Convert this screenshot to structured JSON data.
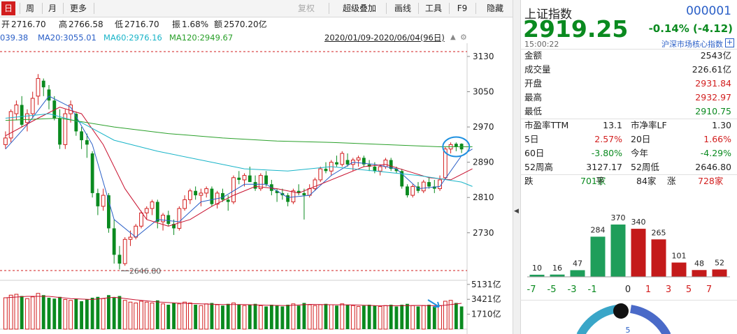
{
  "toolbar": {
    "items": [
      {
        "label": "日",
        "active": true
      },
      {
        "label": "周"
      },
      {
        "label": "月"
      },
      {
        "label": "更多"
      },
      {
        "label": "复权",
        "disabled": true
      },
      {
        "label": "超级叠加"
      },
      {
        "label": "画线"
      },
      {
        "label": "工具"
      },
      {
        "label": "F9"
      },
      {
        "label": "隐藏"
      }
    ]
  },
  "info": {
    "open_label": "开",
    "open": "2716.70",
    "high_label": "高",
    "high": "2766.58",
    "low_label": "低",
    "low": "2716.70",
    "amp_label": "振",
    "amp": "1.68%",
    "amount_label": "额",
    "amount": "2570.20亿"
  },
  "ma": {
    "ma5": "039.38",
    "ma20": "MA20:3055.01",
    "ma60": "MA60:2976.16",
    "ma120": "MA120:2949.67",
    "range": "2020/01/09-2020/06/04(96日)"
  },
  "colors": {
    "up": "#d21e1e",
    "down": "#0a8a1f",
    "ma5": "#2a5fc7",
    "ma20": "#c8102e",
    "ma60": "#18b4c8",
    "ma120": "#2aa02a",
    "accent": "#2a5fc7"
  },
  "chart_data": {
    "type": "candlestick",
    "y_ticks": [
      "3130",
      "3050",
      "2970",
      "2890",
      "2810",
      "2730"
    ],
    "y_tick_values": [
      3130,
      3050,
      2970,
      2890,
      2810,
      2730
    ],
    "ylim": [
      2630,
      3160
    ],
    "min_label": "2646.80",
    "min_value": 2646.8,
    "volume_ticks": [
      "5131亿",
      "3421亿",
      "1710亿"
    ],
    "volume_tick_values": [
      5131,
      3421,
      1710
    ],
    "volume_max": 5600,
    "candles": [
      [
        2930,
        2960,
        2920,
        2945
      ],
      [
        2945,
        3010,
        2935,
        3005
      ],
      [
        3000,
        3030,
        2985,
        3020
      ],
      [
        3020,
        3040,
        2970,
        2975
      ],
      [
        2980,
        3010,
        2960,
        3000
      ],
      [
        3000,
        3050,
        2990,
        3035
      ],
      [
        3040,
        3090,
        3020,
        3080
      ],
      [
        3075,
        3080,
        3040,
        3060
      ],
      [
        3055,
        3065,
        3010,
        3030
      ],
      [
        3030,
        3040,
        2985,
        2990
      ],
      [
        2990,
        3010,
        2920,
        2930
      ],
      [
        2930,
        3010,
        2920,
        3000
      ],
      [
        3000,
        3030,
        2980,
        3020
      ],
      [
        3000,
        3005,
        2950,
        2960
      ],
      [
        2960,
        2970,
        2920,
        2940
      ],
      [
        2940,
        2955,
        2900,
        2930
      ],
      [
        2910,
        2915,
        2810,
        2820
      ],
      [
        2820,
        2830,
        2770,
        2790
      ],
      [
        2790,
        2830,
        2780,
        2815
      ],
      [
        2815,
        2820,
        2730,
        2740
      ],
      [
        2740,
        2760,
        2660,
        2680
      ],
      [
        2680,
        2700,
        2646.8,
        2660
      ],
      [
        2660,
        2720,
        2655,
        2715
      ],
      [
        2715,
        2735,
        2700,
        2720
      ],
      [
        2720,
        2750,
        2715,
        2745
      ],
      [
        2745,
        2780,
        2740,
        2775
      ],
      [
        2775,
        2790,
        2760,
        2785
      ],
      [
        2785,
        2805,
        2770,
        2800
      ],
      [
        2800,
        2805,
        2740,
        2755
      ],
      [
        2755,
        2775,
        2735,
        2770
      ],
      [
        2770,
        2780,
        2745,
        2750
      ],
      [
        2750,
        2760,
        2725,
        2740
      ],
      [
        2740,
        2790,
        2735,
        2785
      ],
      [
        2785,
        2815,
        2780,
        2805
      ],
      [
        2805,
        2830,
        2795,
        2825
      ],
      [
        2825,
        2835,
        2805,
        2815
      ],
      [
        2815,
        2830,
        2790,
        2820
      ],
      [
        2820,
        2835,
        2810,
        2830
      ],
      [
        2830,
        2835,
        2790,
        2795
      ],
      [
        2795,
        2825,
        2785,
        2820
      ],
      [
        2820,
        2830,
        2800,
        2805
      ],
      [
        2805,
        2815,
        2780,
        2800
      ],
      [
        2800,
        2860,
        2795,
        2855
      ],
      [
        2855,
        2870,
        2840,
        2850
      ],
      [
        2850,
        2865,
        2835,
        2860
      ],
      [
        2860,
        2880,
        2850,
        2845
      ],
      [
        2845,
        2860,
        2825,
        2830
      ],
      [
        2830,
        2865,
        2825,
        2860
      ],
      [
        2860,
        2870,
        2835,
        2840
      ],
      [
        2840,
        2850,
        2815,
        2825
      ],
      [
        2825,
        2830,
        2800,
        2820
      ],
      [
        2820,
        2830,
        2805,
        2815
      ],
      [
        2815,
        2820,
        2790,
        2800
      ],
      [
        2800,
        2830,
        2795,
        2825
      ],
      [
        2825,
        2840,
        2815,
        2820
      ],
      [
        2820,
        2830,
        2760,
        2815
      ],
      [
        2815,
        2840,
        2810,
        2830
      ],
      [
        2830,
        2855,
        2825,
        2850
      ],
      [
        2850,
        2880,
        2845,
        2875
      ],
      [
        2875,
        2890,
        2865,
        2870
      ],
      [
        2870,
        2895,
        2860,
        2890
      ],
      [
        2890,
        2905,
        2880,
        2885
      ],
      [
        2885,
        2915,
        2880,
        2910
      ],
      [
        2895,
        2910,
        2880,
        2885
      ],
      [
        2885,
        2900,
        2870,
        2895
      ],
      [
        2895,
        2905,
        2880,
        2900
      ],
      [
        2900,
        2905,
        2880,
        2885
      ],
      [
        2885,
        2895,
        2870,
        2880
      ],
      [
        2880,
        2890,
        2865,
        2870
      ],
      [
        2870,
        2885,
        2860,
        2880
      ],
      [
        2880,
        2900,
        2875,
        2895
      ],
      [
        2895,
        2900,
        2870,
        2875
      ],
      [
        2875,
        2880,
        2865,
        2870
      ],
      [
        2870,
        2875,
        2830,
        2835
      ],
      [
        2835,
        2840,
        2810,
        2815
      ],
      [
        2815,
        2840,
        2810,
        2835
      ],
      [
        2835,
        2845,
        2820,
        2825
      ],
      [
        2825,
        2850,
        2820,
        2845
      ],
      [
        2845,
        2855,
        2830,
        2835
      ],
      [
        2835,
        2850,
        2820,
        2830
      ],
      [
        2830,
        2860,
        2825,
        2850
      ],
      [
        2855,
        2925,
        2850,
        2920
      ],
      [
        2920,
        2935,
        2910,
        2930
      ],
      [
        2931.84,
        2935,
        2915,
        2925
      ],
      [
        2931.84,
        2932.97,
        2910.75,
        2919.25
      ]
    ],
    "volumes": [
      3600,
      3900,
      4000,
      3800,
      3500,
      3700,
      4100,
      3900,
      3600,
      3500,
      3700,
      3400,
      3300,
      3500,
      3200,
      3400,
      3600,
      3700,
      3500,
      3900,
      3600,
      3800,
      3300,
      3100,
      3000,
      3200,
      3100,
      3000,
      3300,
      2900,
      2800,
      3000,
      2900,
      3100,
      3000,
      2800,
      2700,
      2900,
      3000,
      2800,
      2700,
      2900,
      3000,
      2800,
      2700,
      2800,
      2900,
      2700,
      2600,
      2800,
      2700,
      2600,
      2800,
      2900,
      2700,
      3000,
      2800,
      2700,
      2800,
      2900,
      2800,
      2700,
      2900,
      2800,
      2700,
      2600,
      2700,
      2800,
      2700,
      2600,
      2700,
      2800,
      2600,
      2800,
      2900,
      2700,
      2600,
      2700,
      2800,
      2600,
      2700,
      3200,
      3300,
      3000,
      2600
    ],
    "ma_lines": {
      "ma5": [
        [
          0,
          2920
        ],
        [
          4,
          2975
        ],
        [
          8,
          3040
        ],
        [
          12,
          3015
        ],
        [
          16,
          2930
        ],
        [
          20,
          2760
        ],
        [
          24,
          2720
        ],
        [
          28,
          2760
        ],
        [
          32,
          2755
        ],
        [
          36,
          2800
        ],
        [
          40,
          2810
        ],
        [
          44,
          2840
        ],
        [
          48,
          2840
        ],
        [
          52,
          2810
        ],
        [
          56,
          2815
        ],
        [
          60,
          2860
        ],
        [
          64,
          2890
        ],
        [
          68,
          2885
        ],
        [
          72,
          2875
        ],
        [
          76,
          2830
        ],
        [
          80,
          2835
        ],
        [
          84,
          2905
        ],
        [
          86,
          2920
        ]
      ],
      "ma20": [
        [
          0,
          2950
        ],
        [
          6,
          2990
        ],
        [
          10,
          3015
        ],
        [
          14,
          3000
        ],
        [
          18,
          2930
        ],
        [
          22,
          2830
        ],
        [
          26,
          2760
        ],
        [
          30,
          2745
        ],
        [
          34,
          2760
        ],
        [
          38,
          2790
        ],
        [
          42,
          2815
        ],
        [
          46,
          2835
        ],
        [
          50,
          2830
        ],
        [
          54,
          2820
        ],
        [
          58,
          2840
        ],
        [
          62,
          2860
        ],
        [
          66,
          2880
        ],
        [
          70,
          2885
        ],
        [
          74,
          2870
        ],
        [
          78,
          2855
        ],
        [
          82,
          2850
        ],
        [
          86,
          2875
        ]
      ],
      "ma60": [
        [
          0,
          2990
        ],
        [
          8,
          3000
        ],
        [
          14,
          2980
        ],
        [
          20,
          2940
        ],
        [
          28,
          2915
        ],
        [
          36,
          2895
        ],
        [
          44,
          2875
        ],
        [
          52,
          2870
        ],
        [
          60,
          2880
        ],
        [
          68,
          2870
        ],
        [
          76,
          2860
        ],
        [
          84,
          2845
        ],
        [
          86,
          2835
        ]
      ],
      "ma120": [
        [
          0,
          2985
        ],
        [
          10,
          2990
        ],
        [
          20,
          2970
        ],
        [
          30,
          2955
        ],
        [
          40,
          2945
        ],
        [
          50,
          2938
        ],
        [
          60,
          2935
        ],
        [
          70,
          2930
        ],
        [
          80,
          2925
        ],
        [
          86,
          2925
        ]
      ]
    }
  },
  "quote": {
    "name": "上证指数",
    "code": "000001",
    "price": "2919.25",
    "change": "-0.14% (-4.12)",
    "time": "15:00:22",
    "link": "沪深市场核心指数",
    "plus": "+",
    "rows": [
      {
        "k": "金额",
        "v": "2543亿",
        "color": "dark"
      },
      {
        "k": "成交量",
        "v": "226.61亿",
        "color": "dark"
      },
      {
        "k": "开盘",
        "v": "2931.84",
        "color": "red"
      },
      {
        "k": "最高",
        "v": "2932.97",
        "color": "red"
      },
      {
        "k": "最低",
        "v": "2910.75",
        "color": "green"
      }
    ],
    "grid": [
      {
        "k1": "市盈率TTM",
        "v1": "13.1",
        "c1": "dark",
        "k2": "市净率LF",
        "v2": "1.30",
        "c2": "dark"
      },
      {
        "k1": "5日",
        "v1": "2.57%",
        "c1": "red",
        "k2": "20日",
        "v2": "1.66%",
        "c2": "red"
      },
      {
        "k1": "60日",
        "v1": "-3.80%",
        "c1": "green",
        "k2": "今年",
        "v2": "-4.29%",
        "c2": "green"
      },
      {
        "k1": "52周高",
        "v1": "3127.17",
        "c1": "dark",
        "k2": "52周低",
        "v2": "2646.80",
        "c2": "dark"
      }
    ],
    "breadth": {
      "down_label": "跌",
      "down": "701家",
      "flat_label": "平",
      "flat": "84家",
      "up_label": "涨",
      "up": "728家"
    }
  },
  "distribution": {
    "type": "bar",
    "categories": [
      "-7",
      "-5",
      "-3",
      "-1",
      "0",
      "1",
      "3",
      "5",
      "7"
    ],
    "x_labels": [
      "-7",
      "-5",
      "-3",
      "-1",
      "0",
      "1",
      "3",
      "5",
      "7"
    ],
    "bars": [
      10,
      16,
      47,
      284,
      370,
      340,
      265,
      101,
      48,
      52
    ],
    "bar_labels": [
      "10",
      "16",
      "47",
      "284",
      "370",
      "340",
      "265",
      "101",
      "48",
      "52"
    ],
    "bar_colors": [
      "#1e9e5a",
      "#1e9e5a",
      "#1e9e5a",
      "#1e9e5a",
      "#1e9e5a",
      "#c41a1a",
      "#c41a1a",
      "#c41a1a",
      "#c41a1a",
      "#c41a1a"
    ],
    "ymax": 370
  },
  "gauge": {
    "value_label": "5"
  }
}
